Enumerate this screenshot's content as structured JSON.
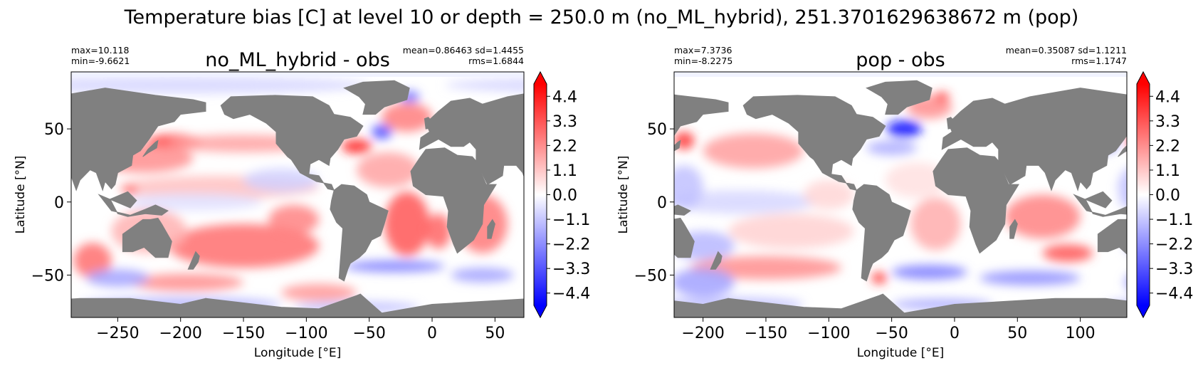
{
  "suptitle": "Temperature bias [C] at level 10 or depth = 250.0 m (no_ML_hybrid), 251.3701629638672 m (pop)",
  "colors": {
    "land": "#808080",
    "cmap_low": "#0000ff",
    "cmap_mid": "#ffffff",
    "cmap_high": "#ff0000",
    "ice_edge": "#eef0ff"
  },
  "chart_data": [
    {
      "type": "heatmap",
      "title": "no_ML_hybrid - obs",
      "stats_left": [
        "max=10.118",
        "min=-9.6621"
      ],
      "stats_right": [
        "mean=0.86463 sd=1.4455",
        "rms=1.6844"
      ],
      "xlabel": "Longitude [°E]",
      "ylabel": "Latitude [°N]",
      "xlim": [
        -287,
        73
      ],
      "ylim": [
        -79,
        89
      ],
      "xticks": [
        -250,
        -200,
        -150,
        -100,
        -50,
        0,
        50
      ],
      "xtick_labels": [
        "−250",
        "−200",
        "−150",
        "−100",
        "−50",
        "0",
        "50"
      ],
      "yticks": [
        50,
        0,
        -50
      ],
      "ytick_labels": [
        "50",
        "0",
        "−50"
      ],
      "colorbar": {
        "vmin": -4.95,
        "vmax": 4.95,
        "extend": "both",
        "ticks": [
          4.4,
          3.3,
          2.2,
          1.1,
          0.0,
          -1.1,
          -2.2,
          -3.3,
          -4.4
        ],
        "tick_labels": [
          "4.4",
          "3.3",
          "2.2",
          "1.1",
          "0.0",
          "−1.1",
          "−2.2",
          "−3.3",
          "−4.4"
        ]
      },
      "bias_patches": [
        {
          "lon": -205,
          "lat": 41,
          "rlon": 22,
          "rlat": 5,
          "v": 4.3
        },
        {
          "lon": -230,
          "lat": 30,
          "rlon": 40,
          "rlat": 10,
          "v": 2.2
        },
        {
          "lon": -150,
          "lat": 40,
          "rlon": 60,
          "rlat": 6,
          "v": 1.8
        },
        {
          "lon": -170,
          "lat": 10,
          "rlon": 80,
          "rlat": 8,
          "v": 1.2
        },
        {
          "lon": -190,
          "lat": 0,
          "rlon": 55,
          "rlat": 6,
          "v": -0.6
        },
        {
          "lon": -150,
          "lat": -30,
          "rlon": 60,
          "rlat": 15,
          "v": 2.8
        },
        {
          "lon": -110,
          "lat": -12,
          "rlon": 20,
          "rlat": 10,
          "v": 2.4
        },
        {
          "lon": -225,
          "lat": -20,
          "rlon": 30,
          "rlat": 15,
          "v": 1.5
        },
        {
          "lon": -240,
          "lat": 8,
          "rlon": 6,
          "rlat": 3,
          "v": 3.6
        },
        {
          "lon": -60,
          "lat": 38,
          "rlon": 12,
          "rlat": 5,
          "v": 4.2
        },
        {
          "lon": -40,
          "lat": 48,
          "rlon": 8,
          "rlat": 5,
          "v": -3.5
        },
        {
          "lon": -20,
          "lat": 58,
          "rlon": 20,
          "rlat": 10,
          "v": 2.5
        },
        {
          "lon": -18,
          "lat": 72,
          "rlon": 8,
          "rlat": 4,
          "v": -2.8
        },
        {
          "lon": -35,
          "lat": 22,
          "rlon": 25,
          "rlat": 12,
          "v": 1.8
        },
        {
          "lon": -20,
          "lat": -15,
          "rlon": 18,
          "rlat": 22,
          "v": 3.3
        },
        {
          "lon": 5,
          "lat": -20,
          "rlon": 10,
          "rlat": 12,
          "v": 3.0
        },
        {
          "lon": 40,
          "lat": -15,
          "rlon": 20,
          "rlat": 20,
          "v": 2.6
        },
        {
          "lon": -195,
          "lat": -55,
          "rlon": 45,
          "rlat": 6,
          "v": 2.2
        },
        {
          "lon": -90,
          "lat": -62,
          "rlon": 30,
          "rlat": 6,
          "v": 2.0
        },
        {
          "lon": -30,
          "lat": -44,
          "rlon": 40,
          "rlat": 4,
          "v": -2.5
        },
        {
          "lon": 40,
          "lat": -50,
          "rlon": 25,
          "rlat": 5,
          "v": -1.8
        },
        {
          "lon": -270,
          "lat": -40,
          "rlon": 15,
          "rlat": 12,
          "v": 2.8
        },
        {
          "lon": -200,
          "lat": -70,
          "rlon": 80,
          "rlat": 5,
          "v": -1.4
        },
        {
          "lon": -60,
          "lat": -72,
          "rlon": 50,
          "rlat": 4,
          "v": -1.2
        },
        {
          "lon": -250,
          "lat": -52,
          "rlon": 25,
          "rlat": 6,
          "v": -1.8
        },
        {
          "lon": -200,
          "lat": 80,
          "rlon": 150,
          "rlat": 6,
          "v": -0.8
        },
        {
          "lon": -120,
          "lat": 15,
          "rlon": 30,
          "rlat": 8,
          "v": -0.9
        }
      ]
    },
    {
      "type": "heatmap",
      "title": "pop - obs",
      "stats_left": [
        "max=7.3736",
        "min=-8.2275"
      ],
      "stats_right": [
        "mean=0.35087 sd=1.1211",
        "rms=1.1747"
      ],
      "xlabel": "Longitude [°E]",
      "ylabel": "Latitude [°N]",
      "xlim": [
        -223,
        137
      ],
      "ylim": [
        -79,
        89
      ],
      "xticks": [
        -200,
        -150,
        -100,
        -50,
        0,
        50,
        100
      ],
      "xtick_labels": [
        "−200",
        "−150",
        "−100",
        "−50",
        "0",
        "50",
        "100"
      ],
      "yticks": [
        50,
        0,
        -50
      ],
      "ytick_labels": [
        "50",
        "0",
        "−50"
      ],
      "colorbar": {
        "vmin": -4.95,
        "vmax": 4.95,
        "extend": "both",
        "ticks": [
          4.4,
          3.3,
          2.2,
          1.1,
          0.0,
          -1.1,
          -2.2,
          -3.3,
          -4.4
        ],
        "tick_labels": [
          "4.4",
          "3.3",
          "2.2",
          "1.1",
          "0.0",
          "−1.1",
          "−2.2",
          "−3.3",
          "−4.4"
        ]
      },
      "bias_patches": [
        {
          "lon": -160,
          "lat": 35,
          "rlon": 40,
          "rlat": 12,
          "v": 1.9
        },
        {
          "lon": -215,
          "lat": 42,
          "rlon": 8,
          "rlat": 6,
          "v": 4.0
        },
        {
          "lon": -170,
          "lat": 0,
          "rlon": 60,
          "rlat": 8,
          "v": -0.8
        },
        {
          "lon": -130,
          "lat": -20,
          "rlon": 50,
          "rlat": 12,
          "v": 0.9
        },
        {
          "lon": -200,
          "lat": -30,
          "rlon": 25,
          "rlat": 10,
          "v": -1.4
        },
        {
          "lon": -40,
          "lat": 50,
          "rlon": 14,
          "rlat": 6,
          "v": -4.6
        },
        {
          "lon": -50,
          "lat": 37,
          "rlon": 20,
          "rlat": 5,
          "v": -1.6
        },
        {
          "lon": -20,
          "lat": 65,
          "rlon": 18,
          "rlat": 8,
          "v": 2.2
        },
        {
          "lon": -10,
          "lat": 72,
          "rlon": 6,
          "rlat": 3,
          "v": 4.0
        },
        {
          "lon": -30,
          "lat": 15,
          "rlon": 25,
          "rlat": 12,
          "v": 0.6
        },
        {
          "lon": -15,
          "lat": -15,
          "rlon": 20,
          "rlat": 18,
          "v": 1.6
        },
        {
          "lon": 70,
          "lat": -10,
          "rlon": 30,
          "rlat": 15,
          "v": 2.4
        },
        {
          "lon": 90,
          "lat": -35,
          "rlon": 20,
          "rlat": 6,
          "v": 3.3
        },
        {
          "lon": -150,
          "lat": -45,
          "rlon": 60,
          "rlat": 8,
          "v": 2.2
        },
        {
          "lon": -200,
          "lat": -55,
          "rlon": 25,
          "rlat": 10,
          "v": -1.8
        },
        {
          "lon": -60,
          "lat": -52,
          "rlon": 6,
          "rlat": 4,
          "v": 4.0
        },
        {
          "lon": -20,
          "lat": -48,
          "rlon": 30,
          "rlat": 5,
          "v": -2.5
        },
        {
          "lon": 60,
          "lat": -52,
          "rlon": 40,
          "rlat": 5,
          "v": -2.2
        },
        {
          "lon": -180,
          "lat": -70,
          "rlon": 60,
          "rlat": 5,
          "v": -1.2
        },
        {
          "lon": -10,
          "lat": -70,
          "rlon": 40,
          "rlat": 4,
          "v": -1.6
        },
        {
          "lon": -215,
          "lat": 10,
          "rlon": 15,
          "rlat": 15,
          "v": -1.2
        },
        {
          "lon": 120,
          "lat": 40,
          "rlon": 10,
          "rlat": 6,
          "v": -2.5
        },
        {
          "lon": -100,
          "lat": 5,
          "rlon": 20,
          "rlat": 10,
          "v": 0.8
        }
      ]
    }
  ]
}
